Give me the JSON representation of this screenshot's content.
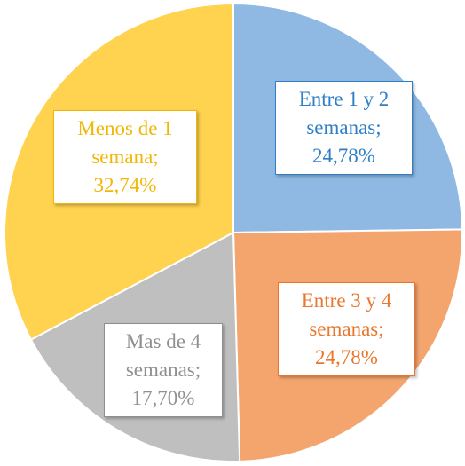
{
  "chart_data": {
    "type": "pie",
    "categories": [
      "Entre 1 y 2 semanas;",
      "Entre 3 y 4 semanas;",
      "Mas de 4 semanas;",
      "Menos de 1 semana;"
    ],
    "values": [
      24.78,
      24.78,
      17.7,
      32.74
    ],
    "value_labels": [
      "24,78%",
      "24,78%",
      "17,70%",
      "32,74%"
    ],
    "colors": [
      "#8fb9e3",
      "#f4a56e",
      "#bfbfbf",
      "#ffd24f"
    ],
    "label_colors": [
      "#2f7fc7",
      "#e9772d",
      "#8f8f8f",
      "#f2b705"
    ]
  }
}
